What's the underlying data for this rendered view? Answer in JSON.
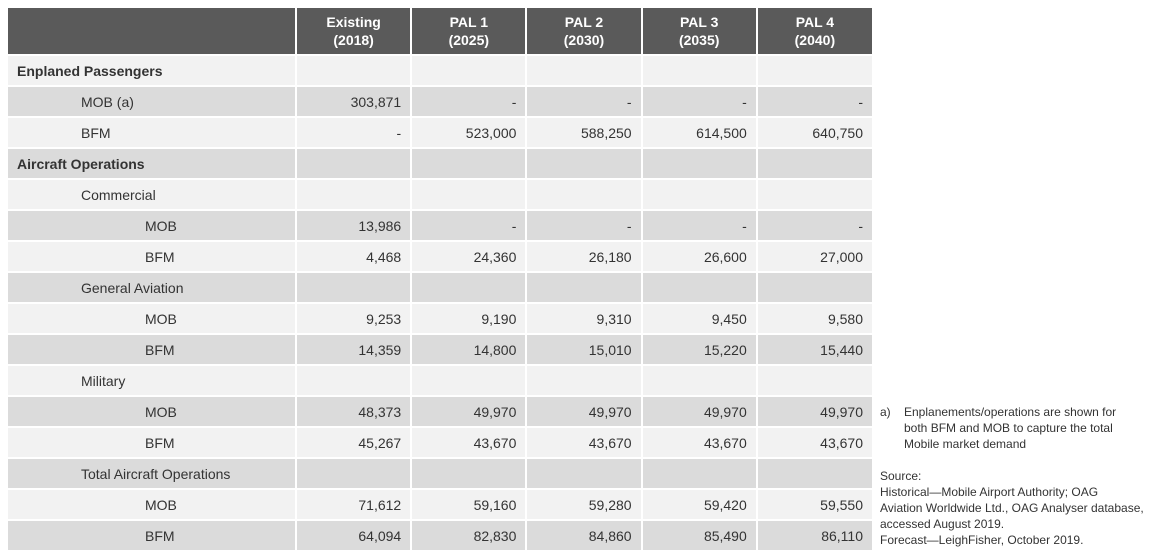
{
  "table": {
    "headers": [
      {
        "line1": "",
        "line2": ""
      },
      {
        "line1": "Existing",
        "line2": "(2018)"
      },
      {
        "line1": "PAL 1",
        "line2": "(2025)"
      },
      {
        "line1": "PAL 2",
        "line2": "(2030)"
      },
      {
        "line1": "PAL 3",
        "line2": "(2035)"
      },
      {
        "line1": "PAL 4",
        "line2": "(2040)"
      }
    ],
    "rows": [
      {
        "label": "Enplaned Passengers",
        "level": 0,
        "values": [
          "",
          "",
          "",
          "",
          ""
        ]
      },
      {
        "label": "MOB (a)",
        "level": 1,
        "values": [
          "303,871",
          "-",
          "-",
          "-",
          "-"
        ]
      },
      {
        "label": "BFM",
        "level": 1,
        "values": [
          "-",
          "523,000",
          "588,250",
          "614,500",
          "640,750"
        ]
      },
      {
        "label": "Aircraft Operations",
        "level": 0,
        "values": [
          "",
          "",
          "",
          "",
          ""
        ]
      },
      {
        "label": "Commercial",
        "level": 1,
        "values": [
          "",
          "",
          "",
          "",
          ""
        ]
      },
      {
        "label": "MOB",
        "level": 2,
        "values": [
          "13,986",
          "-",
          "-",
          "-",
          "-"
        ]
      },
      {
        "label": "BFM",
        "level": 2,
        "values": [
          "4,468",
          "24,360",
          "26,180",
          "26,600",
          "27,000"
        ]
      },
      {
        "label": "General Aviation",
        "level": 1,
        "values": [
          "",
          "",
          "",
          "",
          ""
        ]
      },
      {
        "label": "MOB",
        "level": 2,
        "values": [
          "9,253",
          "9,190",
          "9,310",
          "9,450",
          "9,580"
        ]
      },
      {
        "label": "BFM",
        "level": 2,
        "values": [
          "14,359",
          "14,800",
          "15,010",
          "15,220",
          "15,440"
        ]
      },
      {
        "label": "Military",
        "level": 1,
        "values": [
          "",
          "",
          "",
          "",
          ""
        ]
      },
      {
        "label": "MOB",
        "level": 2,
        "values": [
          "48,373",
          "49,970",
          "49,970",
          "49,970",
          "49,970"
        ]
      },
      {
        "label": "BFM",
        "level": 2,
        "values": [
          "45,267",
          "43,670",
          "43,670",
          "43,670",
          "43,670"
        ]
      },
      {
        "label": "Total Aircraft Operations",
        "level": 1,
        "values": [
          "",
          "",
          "",
          "",
          ""
        ]
      },
      {
        "label": "MOB",
        "level": 2,
        "values": [
          "71,612",
          "59,160",
          "59,280",
          "59,420",
          "59,550"
        ]
      },
      {
        "label": "BFM",
        "level": 2,
        "values": [
          "64,094",
          "82,830",
          "84,860",
          "85,490",
          "86,110"
        ]
      }
    ]
  },
  "notes": {
    "footnote_marker": "a)",
    "footnote_lines": [
      "Enplanements/operations are shown for",
      "both BFM and MOB to capture the total",
      "Mobile market demand"
    ],
    "source_lines": [
      "Source:",
      "Historical—Mobile Airport Authority; OAG",
      "Aviation Worldwide Ltd., OAG Analyser database,",
      "accessed August 2019.",
      "Forecast—LeighFisher, October 2019."
    ]
  },
  "colors": {
    "header_bg": "#5a5a5a",
    "row_dark": "#dbdbdb",
    "row_light": "#f2f2f2"
  }
}
